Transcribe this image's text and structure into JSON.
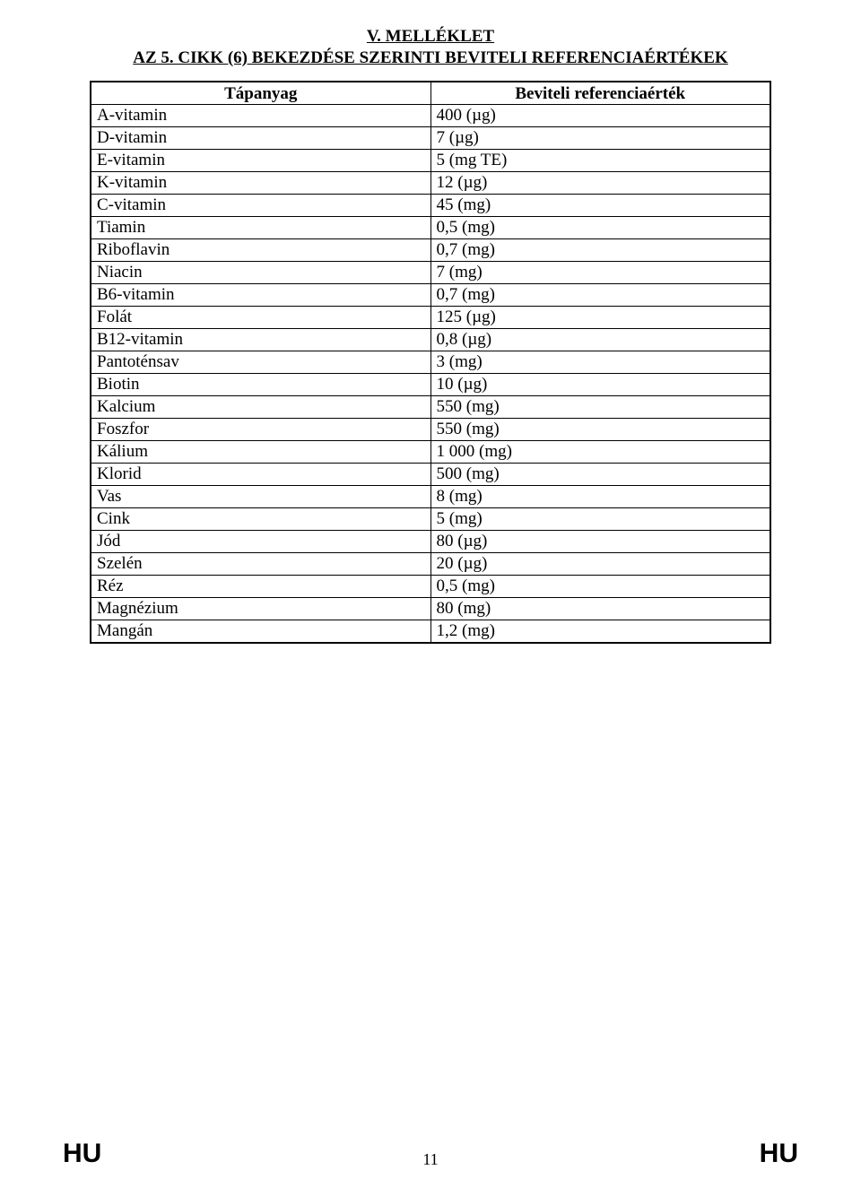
{
  "header": {
    "title": "V. MELLÉKLET",
    "subtitle": "AZ 5. CIKK (6) BEKEZDÉSE SZERINTI BEVITELI REFERENCIAÉRTÉKEK"
  },
  "table": {
    "columns": [
      "Tápanyag",
      "Beviteli referenciaérték"
    ],
    "col_widths": [
      "50%",
      "50%"
    ],
    "rows": [
      [
        "A-vitamin",
        "400 (µg)"
      ],
      [
        "D-vitamin",
        "7 (µg)"
      ],
      [
        "E-vitamin",
        "5 (mg TE)"
      ],
      [
        "K-vitamin",
        "12 (µg)"
      ],
      [
        "C-vitamin",
        "45 (mg)"
      ],
      [
        "Tiamin",
        "0,5 (mg)"
      ],
      [
        "Riboflavin",
        "0,7 (mg)"
      ],
      [
        "Niacin",
        "7 (mg)"
      ],
      [
        "B6-vitamin",
        "0,7 (mg)"
      ],
      [
        "Folát",
        "125 (µg)"
      ],
      [
        "B12-vitamin",
        "0,8 (µg)"
      ],
      [
        "Pantoténsav",
        "3 (mg)"
      ],
      [
        "Biotin",
        "10 (µg)"
      ],
      [
        "Kalcium",
        "550 (mg)"
      ],
      [
        "Foszfor",
        "550 (mg)"
      ],
      [
        "Kálium",
        "1 000 (mg)"
      ],
      [
        "Klorid",
        "500 (mg)"
      ],
      [
        "Vas",
        "8 (mg)"
      ],
      [
        "Cink",
        "5 (mg)"
      ],
      [
        "Jód",
        "80 (µg)"
      ],
      [
        "Szelén",
        "20 (µg)"
      ],
      [
        "Réz",
        "0,5 (mg)"
      ],
      [
        "Magnézium",
        "80 (mg)"
      ],
      [
        "Mangán",
        "1,2 (mg)"
      ]
    ]
  },
  "footer": {
    "left": "HU",
    "page": "11",
    "right": "HU"
  },
  "styling": {
    "background_color": "#ffffff",
    "text_color": "#000000",
    "border_color": "#000000",
    "title_fontsize": 19,
    "body_fontsize": 19,
    "footer_hu_fontsize": 30
  }
}
